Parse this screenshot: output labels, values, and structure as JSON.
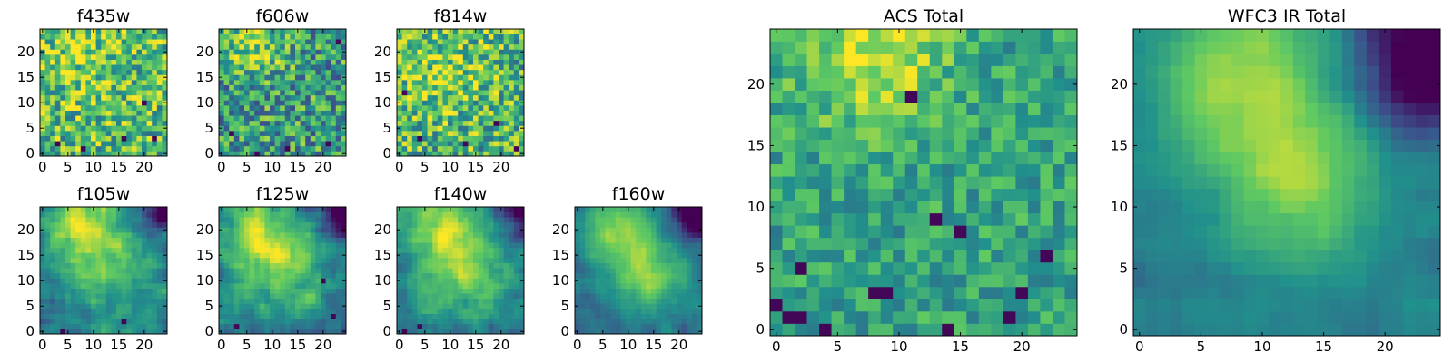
{
  "chart_data": {
    "type": "heatmap",
    "colormap": "viridis",
    "grid": false,
    "colors": [
      "#440154",
      "#3b528b",
      "#21918c",
      "#5ec962",
      "#fde725"
    ],
    "panels": [
      {
        "id": "f435w",
        "title": "f435w",
        "grid_size": 25,
        "xlim": [
          0,
          24
        ],
        "ylim": [
          0,
          24
        ],
        "xticks": [
          0,
          5,
          10,
          15,
          20
        ],
        "yticks": [
          0,
          5,
          10,
          15,
          20
        ],
        "pattern": "noisy",
        "seed": 11,
        "base": 0.68,
        "noise": 0.32,
        "peaks": [
          {
            "x": 9,
            "y": 18,
            "sigma": 6,
            "amp": 0.12
          }
        ],
        "dark": [
          [
            3,
            2
          ],
          [
            8,
            1
          ],
          [
            16,
            3
          ],
          [
            20,
            10
          ],
          [
            22,
            3
          ]
        ]
      },
      {
        "id": "f606w",
        "title": "f606w",
        "grid_size": 25,
        "xlim": [
          0,
          24
        ],
        "ylim": [
          0,
          24
        ],
        "xticks": [
          0,
          5,
          10,
          15,
          20
        ],
        "yticks": [
          0,
          5,
          10,
          15,
          20
        ],
        "pattern": "noisy",
        "seed": 23,
        "base": 0.55,
        "noise": 0.32,
        "peaks": [
          {
            "x": 7,
            "y": 21,
            "sigma": 4,
            "amp": 0.3
          }
        ],
        "dark": [
          [
            2,
            4
          ],
          [
            7,
            0
          ],
          [
            13,
            1
          ],
          [
            21,
            2
          ],
          [
            23,
            22
          ]
        ]
      },
      {
        "id": "f814w",
        "title": "f814w",
        "grid_size": 25,
        "xlim": [
          0,
          24
        ],
        "ylim": [
          0,
          24
        ],
        "xticks": [
          0,
          5,
          10,
          15,
          20
        ],
        "yticks": [
          0,
          5,
          10,
          15,
          20
        ],
        "pattern": "noisy",
        "seed": 37,
        "base": 0.66,
        "noise": 0.32,
        "peaks": [
          {
            "x": 8,
            "y": 17,
            "sigma": 6,
            "amp": 0.15
          }
        ],
        "dark": [
          [
            4,
            3
          ],
          [
            1,
            12
          ],
          [
            13,
            2
          ],
          [
            19,
            6
          ],
          [
            23,
            1
          ]
        ]
      },
      {
        "id": "f105w",
        "title": "f105w",
        "grid_size": 25,
        "xlim": [
          0,
          24
        ],
        "ylim": [
          0,
          24
        ],
        "xticks": [
          0,
          5,
          10,
          15,
          20
        ],
        "yticks": [
          0,
          5,
          10,
          15,
          20
        ],
        "pattern": "smooth",
        "seed": 41,
        "base": 0.42,
        "noise": 0.2,
        "peaks": [
          {
            "x": 8,
            "y": 21,
            "sigma": 5,
            "amp": 0.45
          },
          {
            "x": 13,
            "y": 12,
            "sigma": 6,
            "amp": 0.28
          }
        ],
        "dark_corner": {
          "x": 24,
          "y": 24,
          "sigma": 3.5,
          "amp": 0.5
        },
        "dark": [
          [
            4,
            0
          ],
          [
            16,
            2
          ]
        ]
      },
      {
        "id": "f125w",
        "title": "f125w",
        "grid_size": 25,
        "xlim": [
          0,
          24
        ],
        "ylim": [
          0,
          24
        ],
        "xticks": [
          0,
          5,
          10,
          15,
          20
        ],
        "yticks": [
          0,
          5,
          10,
          15,
          20
        ],
        "pattern": "smooth",
        "seed": 53,
        "base": 0.42,
        "noise": 0.2,
        "peaks": [
          {
            "x": 8,
            "y": 20,
            "sigma": 5,
            "amp": 0.42
          },
          {
            "x": 13,
            "y": 12,
            "sigma": 6,
            "amp": 0.3
          }
        ],
        "dark_corner": {
          "x": 24,
          "y": 24,
          "sigma": 3.5,
          "amp": 0.5
        },
        "dark": [
          [
            20,
            10
          ],
          [
            3,
            1
          ],
          [
            22,
            3
          ]
        ]
      },
      {
        "id": "f140w",
        "title": "f140w",
        "grid_size": 25,
        "xlim": [
          0,
          24
        ],
        "ylim": [
          0,
          24
        ],
        "xticks": [
          0,
          5,
          10,
          15,
          20
        ],
        "yticks": [
          0,
          5,
          10,
          15,
          20
        ],
        "pattern": "smooth",
        "seed": 67,
        "base": 0.44,
        "noise": 0.18,
        "peaks": [
          {
            "x": 8,
            "y": 20,
            "sigma": 5,
            "amp": 0.4
          },
          {
            "x": 13,
            "y": 12,
            "sigma": 6,
            "amp": 0.32
          }
        ],
        "dark_corner": {
          "x": 24,
          "y": 24,
          "sigma": 3.5,
          "amp": 0.5
        },
        "dark": [
          [
            1,
            0
          ],
          [
            4,
            1
          ]
        ]
      },
      {
        "id": "f160w",
        "title": "f160w",
        "grid_size": 25,
        "xlim": [
          0,
          24
        ],
        "ylim": [
          0,
          24
        ],
        "xticks": [
          0,
          5,
          10,
          15,
          20
        ],
        "yticks": [
          0,
          5,
          10,
          15,
          20
        ],
        "pattern": "smooth",
        "seed": 79,
        "base": 0.38,
        "noise": 0.12,
        "peaks": [
          {
            "x": 8,
            "y": 20,
            "sigma": 5,
            "amp": 0.42
          },
          {
            "x": 14,
            "y": 11,
            "sigma": 5,
            "amp": 0.42
          }
        ],
        "dark_corner": {
          "x": 24,
          "y": 24,
          "sigma": 4,
          "amp": 0.6
        },
        "dark": []
      },
      {
        "id": "acs_total",
        "title": "ACS Total",
        "grid_size": 25,
        "xlim": [
          0,
          24
        ],
        "ylim": [
          0,
          24
        ],
        "xticks": [
          0,
          5,
          10,
          15,
          20
        ],
        "yticks": [
          0,
          5,
          10,
          15,
          20
        ],
        "pattern": "noisy",
        "seed": 91,
        "base": 0.58,
        "noise": 0.18,
        "peaks": [
          {
            "x": 8,
            "y": 22,
            "sigma": 4,
            "amp": 0.35
          }
        ],
        "dark": [
          [
            1,
            1
          ],
          [
            2,
            1
          ],
          [
            0,
            2
          ],
          [
            4,
            0
          ],
          [
            2,
            5
          ],
          [
            8,
            3
          ],
          [
            9,
            3
          ],
          [
            11,
            19
          ],
          [
            13,
            9
          ],
          [
            15,
            8
          ],
          [
            20,
            3
          ],
          [
            19,
            1
          ],
          [
            14,
            0
          ],
          [
            22,
            6
          ]
        ]
      },
      {
        "id": "wfc3_ir_total",
        "title": "WFC3 IR Total",
        "grid_size": 25,
        "xlim": [
          0,
          24
        ],
        "ylim": [
          0,
          24
        ],
        "xticks": [
          0,
          5,
          10,
          15,
          20
        ],
        "yticks": [
          0,
          5,
          10,
          15,
          20
        ],
        "pattern": "smooth",
        "seed": 103,
        "base": 0.4,
        "noise": 0.08,
        "peaks": [
          {
            "x": 8,
            "y": 21,
            "sigma": 5,
            "amp": 0.42
          },
          {
            "x": 13,
            "y": 12,
            "sigma": 5,
            "amp": 0.4
          }
        ],
        "dark_corner": {
          "x": 24,
          "y": 22,
          "sigma": 4,
          "amp": 0.65
        },
        "dark": []
      }
    ]
  }
}
